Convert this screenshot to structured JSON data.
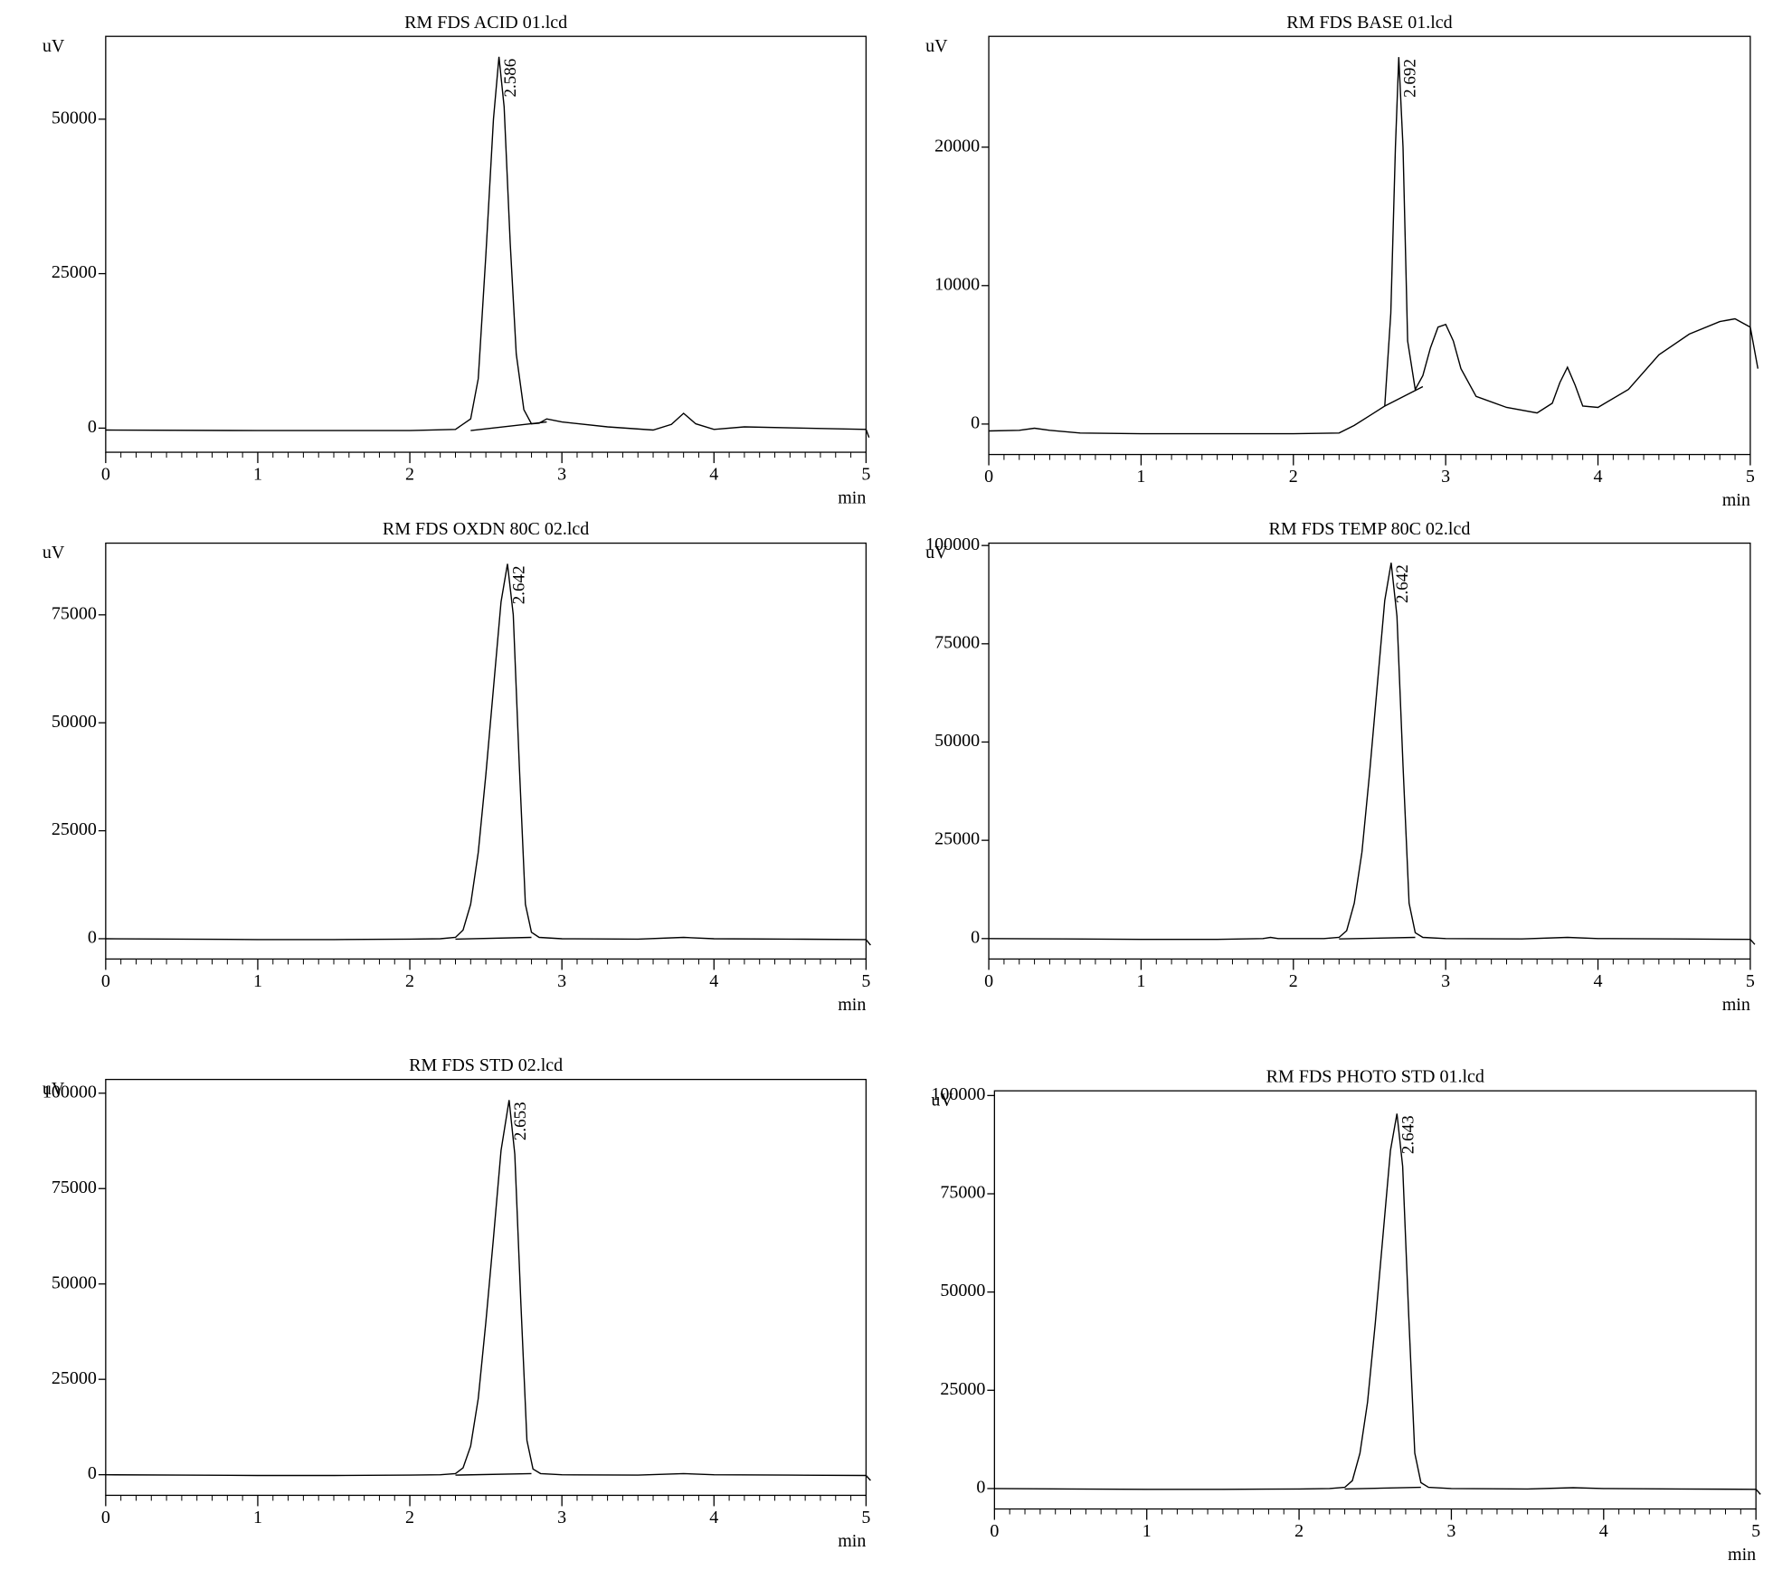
{
  "chart_data": [
    {
      "type": "line",
      "title": "RM FDS ACID 01.lcd",
      "ylabel": "uV",
      "xlabel": "min",
      "xlim": [
        0,
        5
      ],
      "xticks": [
        0,
        1,
        2,
        3,
        4,
        5
      ],
      "ylim": [
        -3900,
        63400
      ],
      "yticks": [
        0,
        25000,
        50000
      ],
      "color": "#000000",
      "annotations": [
        {
          "value": 2.586,
          "label": "2.586"
        }
      ],
      "series": [
        {
          "x": [
            0,
            1,
            2,
            2.3,
            2.4,
            2.45,
            2.5,
            2.55,
            2.586,
            2.62,
            2.66,
            2.7,
            2.75,
            2.8,
            2.85,
            2.9,
            3.0,
            3.3,
            3.6,
            3.72,
            3.8,
            3.88,
            4.0,
            4.2,
            4.6,
            5.0,
            5.02
          ],
          "values": [
            -300,
            -400,
            -400,
            -200,
            1500,
            8000,
            28000,
            50000,
            60100,
            52000,
            30000,
            12000,
            3000,
            700,
            800,
            1500,
            1000,
            200,
            -300,
            600,
            2400,
            700,
            -200,
            200,
            0,
            -200,
            -1500
          ]
        },
        {
          "x": [
            2.4,
            2.9
          ],
          "values": [
            -400,
            1000
          ]
        }
      ]
    },
    {
      "type": "line",
      "title": "RM FDS BASE 01.lcd",
      "ylabel": "uV",
      "xlabel": "min",
      "xlim": [
        0,
        5
      ],
      "xticks": [
        0,
        1,
        2,
        3,
        4,
        5
      ],
      "ylim": [
        -2200,
        28000
      ],
      "yticks": [
        0,
        10000,
        20000
      ],
      "color": "#000000",
      "annotations": [
        {
          "value": 2.692,
          "label": "2.692"
        }
      ],
      "series": [
        {
          "x": [
            0,
            0.2,
            0.3,
            0.4,
            0.6,
            1,
            1.5,
            2,
            2.3,
            2.4,
            2.5,
            2.6,
            2.64,
            2.67,
            2.692,
            2.72,
            2.75,
            2.8,
            2.85,
            2.9,
            2.95,
            3.0,
            3.05,
            3.1,
            3.2,
            3.4,
            3.6,
            3.7,
            3.75,
            3.8,
            3.85,
            3.9,
            4.0,
            4.2,
            4.4,
            4.6,
            4.8,
            4.9,
            5.0,
            5.05
          ],
          "values": [
            -500,
            -450,
            -300,
            -450,
            -650,
            -700,
            -700,
            -700,
            -650,
            -100,
            600,
            1300,
            8000,
            20000,
            26500,
            20000,
            6000,
            2500,
            3500,
            5500,
            7000,
            7200,
            6000,
            4000,
            2000,
            1200,
            800,
            1500,
            3000,
            4100,
            2800,
            1300,
            1200,
            2500,
            5000,
            6500,
            7400,
            7600,
            7000,
            4000
          ]
        },
        {
          "x": [
            2.6,
            2.85
          ],
          "values": [
            1300,
            2700
          ]
        }
      ]
    },
    {
      "type": "line",
      "title": "RM FDS OXDN 80C 02.lcd",
      "ylabel": "uV",
      "xlabel": "min",
      "xlim": [
        0,
        5
      ],
      "xticks": [
        0,
        1,
        2,
        3,
        4,
        5
      ],
      "ylim": [
        -4700,
        91600
      ],
      "yticks": [
        0,
        25000,
        50000,
        75000
      ],
      "color": "#000000",
      "annotations": [
        {
          "value": 2.642,
          "label": "2.642"
        }
      ],
      "series": [
        {
          "x": [
            0,
            0.5,
            1,
            1.5,
            2,
            2.2,
            2.3,
            2.35,
            2.4,
            2.45,
            2.5,
            2.55,
            2.6,
            2.642,
            2.68,
            2.72,
            2.76,
            2.8,
            2.85,
            3.0,
            3.5,
            3.8,
            4.0,
            4.5,
            5.0,
            5.03
          ],
          "values": [
            0,
            -100,
            -200,
            -200,
            -100,
            0,
            300,
            2000,
            8000,
            20000,
            38000,
            58000,
            78000,
            86800,
            75000,
            40000,
            8000,
            1500,
            300,
            0,
            -100,
            300,
            0,
            -100,
            -200,
            -1500
          ]
        },
        {
          "x": [
            2.3,
            2.8
          ],
          "values": [
            -100,
            300
          ]
        }
      ]
    },
    {
      "type": "line",
      "title": "RM FDS TEMP 80C 02.lcd",
      "ylabel": "uV",
      "xlabel": "min",
      "xlim": [
        0,
        5
      ],
      "xticks": [
        0,
        1,
        2,
        3,
        4,
        5
      ],
      "ylim": [
        -5200,
        100600
      ],
      "yticks": [
        0,
        25000,
        50000,
        75000,
        100000
      ],
      "color": "#000000",
      "annotations": [
        {
          "value": 2.642,
          "label": "2.642"
        }
      ],
      "series": [
        {
          "x": [
            0,
            0.5,
            1,
            1.5,
            1.8,
            1.85,
            1.9,
            2.2,
            2.3,
            2.35,
            2.4,
            2.45,
            2.5,
            2.55,
            2.6,
            2.642,
            2.68,
            2.72,
            2.76,
            2.8,
            2.85,
            3.0,
            3.5,
            3.8,
            4.0,
            4.5,
            5.0,
            5.03
          ],
          "values": [
            0,
            -100,
            -200,
            -200,
            0,
            300,
            0,
            0,
            300,
            2000,
            9000,
            22000,
            42000,
            64000,
            86000,
            95600,
            82000,
            44000,
            9000,
            1500,
            300,
            0,
            -100,
            300,
            0,
            -100,
            -200,
            -1500
          ]
        },
        {
          "x": [
            2.3,
            2.8
          ],
          "values": [
            -100,
            300
          ]
        }
      ]
    },
    {
      "type": "line",
      "title": "RM FDS STD 02.lcd",
      "ylabel": "uV",
      "xlabel": "min",
      "xlim": [
        0,
        5
      ],
      "xticks": [
        0,
        1,
        2,
        3,
        4,
        5
      ],
      "ylim": [
        -5400,
        103600
      ],
      "yticks": [
        0,
        25000,
        50000,
        75000,
        100000
      ],
      "color": "#000000",
      "annotations": [
        {
          "value": 2.653,
          "label": "2.653"
        }
      ],
      "series": [
        {
          "x": [
            0,
            0.5,
            1,
            1.5,
            2,
            2.2,
            2.3,
            2.35,
            2.4,
            2.45,
            2.5,
            2.55,
            2.6,
            2.653,
            2.69,
            2.73,
            2.77,
            2.81,
            2.86,
            3.0,
            3.5,
            3.8,
            4.0,
            4.5,
            5.0,
            5.03
          ],
          "values": [
            0,
            -100,
            -200,
            -200,
            -100,
            0,
            300,
            1800,
            7500,
            20000,
            40000,
            62000,
            85000,
            98200,
            84000,
            45000,
            9000,
            1500,
            300,
            0,
            -100,
            300,
            0,
            -100,
            -200,
            -1500
          ]
        },
        {
          "x": [
            2.3,
            2.8
          ],
          "values": [
            -100,
            300
          ]
        }
      ]
    },
    {
      "type": "line",
      "title": "RM FDS PHOTO STD 01.lcd",
      "ylabel": "uV",
      "xlabel": "min",
      "xlim": [
        0,
        5
      ],
      "xticks": [
        0,
        1,
        2,
        3,
        4,
        5
      ],
      "ylim": [
        -5200,
        101200
      ],
      "yticks": [
        0,
        25000,
        50000,
        75000,
        100000
      ],
      "color": "#000000",
      "annotations": [
        {
          "value": 2.643,
          "label": "2.643"
        }
      ],
      "series": [
        {
          "x": [
            0,
            0.5,
            1,
            1.5,
            2,
            2.2,
            2.3,
            2.35,
            2.4,
            2.45,
            2.5,
            2.55,
            2.6,
            2.643,
            2.68,
            2.72,
            2.76,
            2.8,
            2.85,
            3.0,
            3.5,
            3.8,
            4.0,
            4.5,
            5.0,
            5.03
          ],
          "values": [
            0,
            -100,
            -200,
            -200,
            -100,
            0,
            300,
            2000,
            9000,
            22000,
            42000,
            64000,
            86000,
            95400,
            82000,
            44000,
            9000,
            1500,
            300,
            0,
            -100,
            200,
            0,
            -100,
            -200,
            -1500
          ]
        },
        {
          "x": [
            2.3,
            2.8
          ],
          "values": [
            -100,
            300
          ]
        }
      ]
    }
  ]
}
